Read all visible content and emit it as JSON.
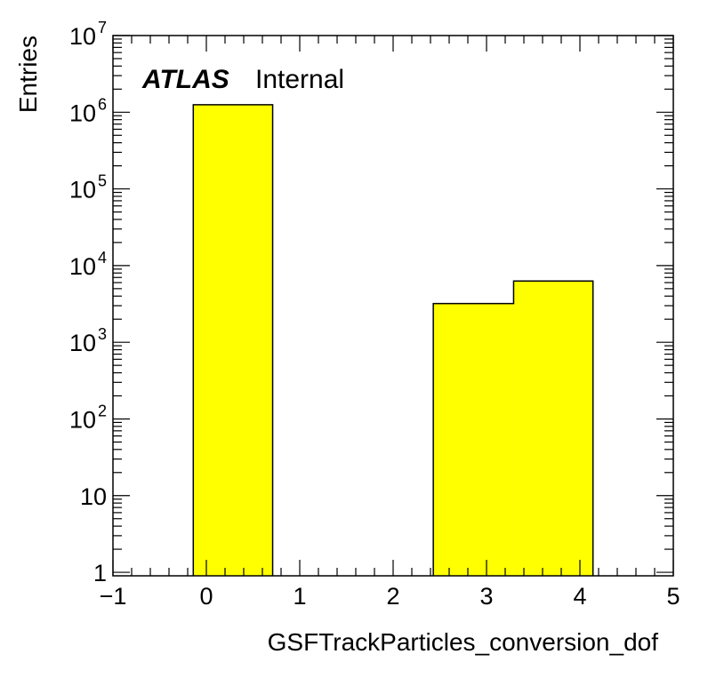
{
  "chart_data": {
    "type": "bar",
    "histogram": true,
    "xlabel": "GSFTrackParticles_conversion_dof",
    "ylabel": "Entries",
    "xlim": [
      -1,
      5
    ],
    "ylim": [
      0.9,
      10000000
    ],
    "log_y": true,
    "grid": false,
    "bin_edges": [
      -0.14,
      0.71,
      1.57,
      2.43,
      3.29,
      4.14,
      5.0
    ],
    "values": [
      1250000,
      0,
      0,
      3200,
      6300,
      0
    ],
    "x_ticks": [
      {
        "value": -1,
        "label": "−1"
      },
      {
        "value": 0,
        "label": "0"
      },
      {
        "value": 1,
        "label": "1"
      },
      {
        "value": 2,
        "label": "2"
      },
      {
        "value": 3,
        "label": "3"
      },
      {
        "value": 4,
        "label": "4"
      },
      {
        "value": 5,
        "label": "5"
      }
    ],
    "y_ticks": [
      {
        "value": 1,
        "label": "1",
        "exp": ""
      },
      {
        "value": 10,
        "label": "10",
        "exp": ""
      },
      {
        "value": 100,
        "label": "10",
        "exp": "2"
      },
      {
        "value": 1000,
        "label": "10",
        "exp": "3"
      },
      {
        "value": 10000,
        "label": "10",
        "exp": "4"
      },
      {
        "value": 100000,
        "label": "10",
        "exp": "5"
      },
      {
        "value": 1000000,
        "label": "10",
        "exp": "6"
      },
      {
        "value": 10000000,
        "label": "10",
        "exp": "7"
      }
    ],
    "annotation": {
      "bold": "ATLAS",
      "text": "Internal"
    },
    "fill_color": "#ffff00",
    "line_color": "#000000"
  }
}
